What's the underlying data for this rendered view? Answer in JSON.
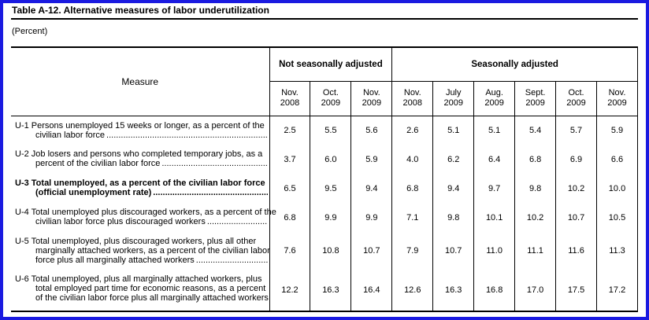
{
  "frame": {
    "border_color": "#1a1ae0"
  },
  "header": {
    "title": "Table A-12.  Alternative measures of labor underutilization",
    "subtitle": "(Percent)"
  },
  "table": {
    "measure_header": "Measure",
    "groups": [
      {
        "label": "Not seasonally adjusted",
        "span": 3
      },
      {
        "label": "Seasonally adjusted",
        "span": 6
      }
    ],
    "columns": [
      {
        "month": "Nov.",
        "year": "2008"
      },
      {
        "month": "Oct.",
        "year": "2009"
      },
      {
        "month": "Nov.",
        "year": "2009"
      },
      {
        "month": "Nov.",
        "year": "2008"
      },
      {
        "month": "July",
        "year": "2009"
      },
      {
        "month": "Aug.",
        "year": "2009"
      },
      {
        "month": "Sept.",
        "year": "2009"
      },
      {
        "month": "Oct.",
        "year": "2009"
      },
      {
        "month": "Nov.",
        "year": "2009"
      }
    ],
    "dot_leader": "........................................................................................................................................................................",
    "rows": [
      {
        "id": "U-1",
        "lines": [
          "U-1 Persons unemployed 15 weeks or longer, as a percent of the",
          "civilian labor force"
        ],
        "bold": false,
        "values": [
          "2.5",
          "5.5",
          "5.6",
          "2.6",
          "5.1",
          "5.1",
          "5.4",
          "5.7",
          "5.9"
        ]
      },
      {
        "id": "U-2",
        "lines": [
          "U-2 Job losers and persons who completed temporary jobs, as a",
          "percent of the civilian labor force"
        ],
        "bold": false,
        "values": [
          "3.7",
          "6.0",
          "5.9",
          "4.0",
          "6.2",
          "6.4",
          "6.8",
          "6.9",
          "6.6"
        ]
      },
      {
        "id": "U-3",
        "lines": [
          "U-3 Total unemployed, as a percent of the civilian labor force",
          "(official unemployment rate)"
        ],
        "bold": true,
        "values": [
          "6.5",
          "9.5",
          "9.4",
          "6.8",
          "9.4",
          "9.7",
          "9.8",
          "10.2",
          "10.0"
        ]
      },
      {
        "id": "U-4",
        "lines": [
          "U-4 Total unemployed plus discouraged workers, as a percent of the",
          "civilian labor force plus discouraged workers"
        ],
        "bold": false,
        "values": [
          "6.8",
          "9.9",
          "9.9",
          "7.1",
          "9.8",
          "10.1",
          "10.2",
          "10.7",
          "10.5"
        ]
      },
      {
        "id": "U-5",
        "lines": [
          "U-5 Total unemployed, plus discouraged workers, plus all other",
          "marginally attached workers, as a percent of the civilian labor",
          "force plus all marginally attached workers"
        ],
        "bold": false,
        "values": [
          "7.6",
          "10.8",
          "10.7",
          "7.9",
          "10.7",
          "11.0",
          "11.1",
          "11.6",
          "11.3"
        ]
      },
      {
        "id": "U-6",
        "lines": [
          "U-6 Total unemployed, plus all marginally attached workers, plus",
          "total employed part time for economic reasons, as a percent",
          "of the civilian labor force plus all marginally attached workers"
        ],
        "bold": false,
        "values": [
          "12.2",
          "16.3",
          "16.4",
          "12.6",
          "16.3",
          "16.8",
          "17.0",
          "17.5",
          "17.2"
        ]
      }
    ]
  }
}
